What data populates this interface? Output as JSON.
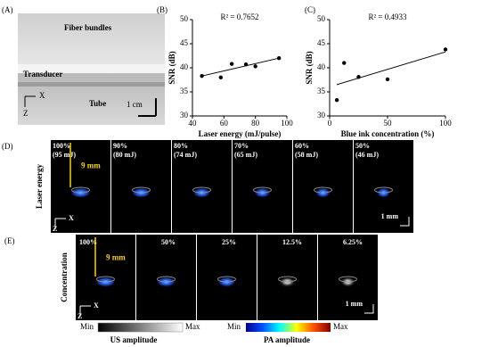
{
  "photo": {
    "panel": "(A)",
    "labels": [
      "Fiber bundles",
      "Transducer",
      "Tube"
    ],
    "scale": "1 cm",
    "x_axis": "X",
    "z_axis": "Z"
  },
  "chart_data": [
    {
      "type": "scatter",
      "panel": "(B)",
      "annotation": "R² = 0.7652",
      "x_label": "Laser energy (mJ/pulse)",
      "y_label": "SNR (dB)",
      "x": [
        46,
        58,
        65,
        74,
        80,
        95
      ],
      "values": [
        38.3,
        38,
        40.8,
        40.7,
        40.3,
        42
      ],
      "trendline": {
        "x": [
          46,
          95
        ],
        "values": [
          38.3,
          42
        ]
      },
      "xlim": [
        40,
        100
      ],
      "xticks": [
        40,
        60,
        80,
        100
      ],
      "ylim": [
        30,
        50
      ],
      "yticks": [
        30,
        35,
        40,
        45,
        50
      ],
      "color": "#000000"
    },
    {
      "type": "scatter",
      "panel": "(C)",
      "annotation": "R² = 0.4933",
      "x_label": "Blue ink concentration (%)",
      "y_label": "SNR (dB)",
      "x": [
        6.25,
        12.5,
        25,
        50,
        100
      ],
      "values": [
        33.3,
        41,
        38.1,
        37.6,
        43.8
      ],
      "trendline": {
        "x": [
          6.25,
          100
        ],
        "values": [
          36.5,
          43.3
        ]
      },
      "xlim": [
        0,
        100
      ],
      "xticks": [
        0,
        50,
        100
      ],
      "ylim": [
        30,
        50
      ],
      "yticks": [
        30,
        35,
        40,
        45,
        50
      ],
      "color": "#000000"
    }
  ],
  "laser_row": {
    "panel": "(D)",
    "axis_title": "Laser energy",
    "depth": "9 mm",
    "scale": "1 mm",
    "x_axis": "X",
    "z_axis": "Z",
    "frames": [
      [
        "100%",
        "(95 mJ)"
      ],
      [
        "90%",
        "(80 mJ)"
      ],
      [
        "80%",
        "(74 mJ)"
      ],
      [
        "70%",
        "(65 mJ)"
      ],
      [
        "60%",
        "(58 mJ)"
      ],
      [
        "50%",
        "(46 mJ)"
      ]
    ]
  },
  "conc_row": {
    "panel": "(E)",
    "axis_title": "Concentration",
    "depth": "9 mm",
    "scale": "1 mm",
    "x_axis": "X",
    "z_axis": "Z",
    "frames": [
      "100%",
      "50%",
      "25%",
      "12.5%",
      "6.25%"
    ]
  },
  "colorbars": {
    "us": {
      "min": "Min",
      "max": "Max",
      "label": "US amplitude"
    },
    "pa": {
      "min": "Min",
      "max": "Max",
      "label": "PA amplitude"
    }
  }
}
